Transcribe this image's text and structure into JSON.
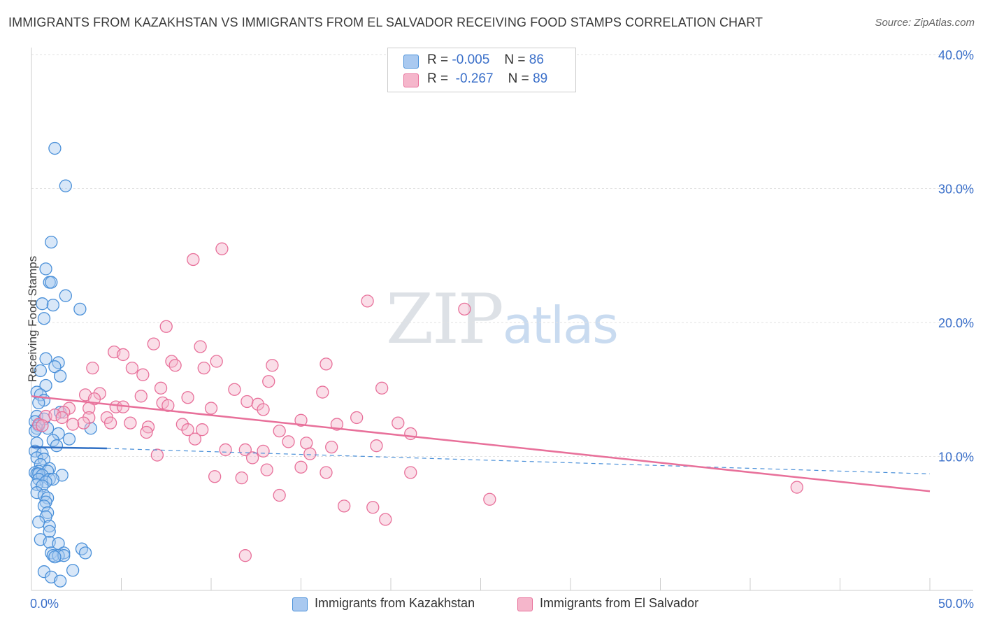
{
  "title": "IMMIGRANTS FROM KAZAKHSTAN VS IMMIGRANTS FROM EL SALVADOR RECEIVING FOOD STAMPS CORRELATION CHART",
  "source": "Source: ZipAtlas.com",
  "watermark": {
    "zip": "ZIP",
    "atlas": "atlas"
  },
  "colors": {
    "blue": "#4a90d9",
    "blue_fill": "#a9c9f0",
    "pink": "#e8709a",
    "pink_fill": "#f5b6cb",
    "axis_text": "#3a6fc9"
  },
  "legend": {
    "rows": [
      {
        "r_label": "R =",
        "r_value": "-0.005",
        "n_label": "N =",
        "n_value": "86"
      },
      {
        "r_label": "R =",
        "r_value": "-0.267",
        "n_label": "N =",
        "n_value": "89"
      }
    ]
  },
  "bottom_legend": [
    "Immigrants from Kazakhstan",
    "Immigrants from El Salvador"
  ],
  "chart_data": {
    "type": "scatter",
    "xlabel": "",
    "ylabel": "Receiving Food Stamps",
    "xlim": [
      0,
      50
    ],
    "ylim": [
      0,
      40
    ],
    "x_tick_labels": [
      "0.0%",
      "50.0%"
    ],
    "y_tick_labels": [
      "10.0%",
      "20.0%",
      "30.0%",
      "40.0%"
    ],
    "y_ticks": [
      10,
      20,
      30,
      40
    ],
    "grid": true,
    "legend_position": "top-center",
    "series": [
      {
        "name": "Immigrants from Kazakhstan",
        "color": "#4a90d9",
        "trend": {
          "x": [
            0,
            4.2
          ],
          "y": [
            10.7,
            10.6
          ],
          "dashed_to": [
            50,
            8.7
          ]
        },
        "points": [
          [
            1.3,
            33.0
          ],
          [
            1.9,
            30.2
          ],
          [
            1.1,
            26.0
          ],
          [
            0.8,
            24.0
          ],
          [
            1.0,
            23.0
          ],
          [
            1.1,
            23.0
          ],
          [
            1.9,
            22.0
          ],
          [
            0.6,
            21.4
          ],
          [
            1.2,
            21.3
          ],
          [
            2.7,
            21.0
          ],
          [
            0.7,
            20.3
          ],
          [
            0.8,
            17.3
          ],
          [
            1.5,
            17.0
          ],
          [
            1.3,
            16.7
          ],
          [
            0.5,
            16.4
          ],
          [
            1.6,
            16.0
          ],
          [
            0.8,
            15.3
          ],
          [
            0.3,
            14.8
          ],
          [
            0.5,
            14.6
          ],
          [
            0.7,
            14.2
          ],
          [
            0.4,
            14.0
          ],
          [
            1.6,
            13.3
          ],
          [
            0.3,
            13.0
          ],
          [
            0.7,
            12.8
          ],
          [
            0.2,
            12.6
          ],
          [
            0.4,
            12.3
          ],
          [
            0.3,
            12.1
          ],
          [
            0.9,
            12.1
          ],
          [
            3.3,
            12.1
          ],
          [
            1.5,
            11.7
          ],
          [
            0.2,
            11.9
          ],
          [
            1.2,
            11.2
          ],
          [
            2.1,
            11.3
          ],
          [
            0.3,
            11.0
          ],
          [
            1.4,
            10.8
          ],
          [
            0.2,
            10.4
          ],
          [
            0.6,
            10.2
          ],
          [
            0.3,
            9.9
          ],
          [
            0.7,
            9.8
          ],
          [
            0.5,
            9.4
          ],
          [
            1.0,
            9.1
          ],
          [
            0.4,
            8.9
          ],
          [
            0.9,
            8.9
          ],
          [
            0.2,
            8.8
          ],
          [
            0.3,
            8.7
          ],
          [
            0.4,
            8.7
          ],
          [
            0.6,
            8.6
          ],
          [
            1.7,
            8.6
          ],
          [
            0.4,
            8.3
          ],
          [
            1.0,
            8.3
          ],
          [
            1.2,
            8.3
          ],
          [
            0.8,
            8.1
          ],
          [
            0.3,
            7.9
          ],
          [
            0.6,
            7.8
          ],
          [
            0.3,
            7.3
          ],
          [
            0.7,
            7.1
          ],
          [
            0.9,
            6.9
          ],
          [
            0.8,
            6.6
          ],
          [
            0.7,
            6.3
          ],
          [
            0.9,
            5.8
          ],
          [
            0.8,
            5.5
          ],
          [
            0.4,
            5.1
          ],
          [
            1.0,
            4.8
          ],
          [
            1.0,
            4.4
          ],
          [
            0.5,
            3.8
          ],
          [
            1.0,
            3.6
          ],
          [
            1.5,
            3.5
          ],
          [
            2.8,
            3.1
          ],
          [
            3.0,
            2.8
          ],
          [
            1.1,
            2.8
          ],
          [
            1.8,
            2.8
          ],
          [
            1.2,
            2.6
          ],
          [
            1.5,
            2.6
          ],
          [
            1.8,
            2.6
          ],
          [
            1.3,
            2.5
          ],
          [
            2.3,
            1.5
          ],
          [
            0.7,
            1.4
          ],
          [
            1.1,
            1.0
          ],
          [
            1.6,
            0.7
          ]
        ]
      },
      {
        "name": "Immigrants from El Salvador",
        "color": "#e8709a",
        "trend": {
          "x": [
            0,
            50
          ],
          "y": [
            14.5,
            7.4
          ]
        },
        "points": [
          [
            10.6,
            25.5
          ],
          [
            9.0,
            24.7
          ],
          [
            18.7,
            21.6
          ],
          [
            24.1,
            21.0
          ],
          [
            7.5,
            19.7
          ],
          [
            6.8,
            18.4
          ],
          [
            9.4,
            18.2
          ],
          [
            4.6,
            17.8
          ],
          [
            5.1,
            17.6
          ],
          [
            7.8,
            17.1
          ],
          [
            10.3,
            17.1
          ],
          [
            16.4,
            16.9
          ],
          [
            13.4,
            16.8
          ],
          [
            8.0,
            16.8
          ],
          [
            3.4,
            16.6
          ],
          [
            5.6,
            16.6
          ],
          [
            9.6,
            16.6
          ],
          [
            6.2,
            16.1
          ],
          [
            13.2,
            15.6
          ],
          [
            7.2,
            15.1
          ],
          [
            11.3,
            15.0
          ],
          [
            19.5,
            15.1
          ],
          [
            16.2,
            14.8
          ],
          [
            3.0,
            14.6
          ],
          [
            3.8,
            14.7
          ],
          [
            6.1,
            14.5
          ],
          [
            8.7,
            14.4
          ],
          [
            3.5,
            14.3
          ],
          [
            12.0,
            14.1
          ],
          [
            7.3,
            14.0
          ],
          [
            12.6,
            13.9
          ],
          [
            7.6,
            13.8
          ],
          [
            2.1,
            13.6
          ],
          [
            4.7,
            13.7
          ],
          [
            5.1,
            13.7
          ],
          [
            3.2,
            13.6
          ],
          [
            10.0,
            13.6
          ],
          [
            12.9,
            13.5
          ],
          [
            1.8,
            13.3
          ],
          [
            0.8,
            13.0
          ],
          [
            1.3,
            13.1
          ],
          [
            1.7,
            12.9
          ],
          [
            3.2,
            12.9
          ],
          [
            4.2,
            12.9
          ],
          [
            18.1,
            12.9
          ],
          [
            15.0,
            12.7
          ],
          [
            4.4,
            12.5
          ],
          [
            5.5,
            12.5
          ],
          [
            2.9,
            12.5
          ],
          [
            0.4,
            12.4
          ],
          [
            2.3,
            12.4
          ],
          [
            8.4,
            12.4
          ],
          [
            17.0,
            12.4
          ],
          [
            20.4,
            12.5
          ],
          [
            0.6,
            12.3
          ],
          [
            6.5,
            12.2
          ],
          [
            9.5,
            12.0
          ],
          [
            8.7,
            12.0
          ],
          [
            13.8,
            11.9
          ],
          [
            21.1,
            11.7
          ],
          [
            6.4,
            11.8
          ],
          [
            9.1,
            11.3
          ],
          [
            14.3,
            11.1
          ],
          [
            15.3,
            11.0
          ],
          [
            16.7,
            10.7
          ],
          [
            19.2,
            10.8
          ],
          [
            11.9,
            10.5
          ],
          [
            10.8,
            10.5
          ],
          [
            12.9,
            10.4
          ],
          [
            15.5,
            10.2
          ],
          [
            7.0,
            10.1
          ],
          [
            12.3,
            9.9
          ],
          [
            15.0,
            9.2
          ],
          [
            13.1,
            9.0
          ],
          [
            16.4,
            8.8
          ],
          [
            21.1,
            8.8
          ],
          [
            10.2,
            8.5
          ],
          [
            11.7,
            8.4
          ],
          [
            13.8,
            7.1
          ],
          [
            25.5,
            6.8
          ],
          [
            17.4,
            6.3
          ],
          [
            19.0,
            6.2
          ],
          [
            19.7,
            5.3
          ],
          [
            42.6,
            7.7
          ],
          [
            11.9,
            2.6
          ]
        ]
      }
    ]
  }
}
